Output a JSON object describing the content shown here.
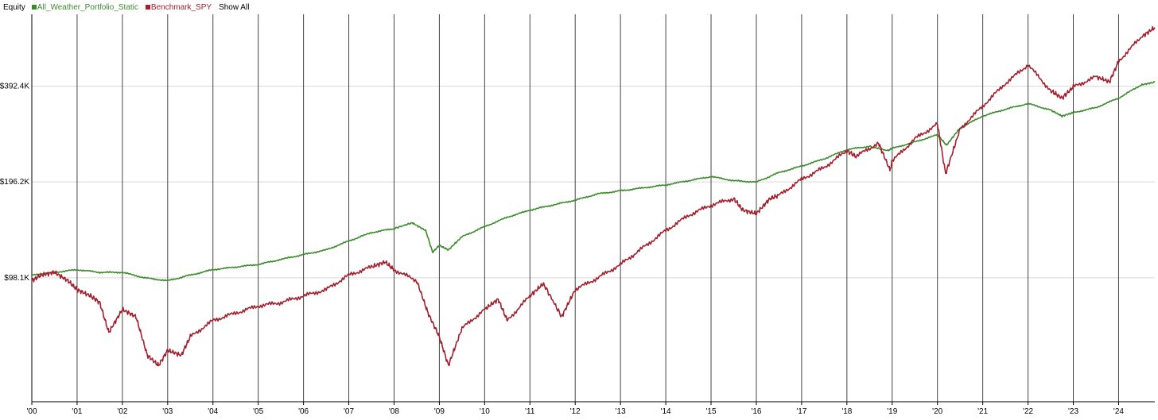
{
  "legend": {
    "title": "Equity",
    "show_all": "Show All"
  },
  "chart_data": {
    "type": "line",
    "title": "",
    "xlabel": "",
    "ylabel": "",
    "xlim": [
      2000.0,
      2024.8
    ],
    "ylim": [
      40000,
      660000
    ],
    "y_scale": "log",
    "grid": "vertical lines at each year, horizontal lines at y ticks",
    "legend_position": "top-left",
    "x_ticks": [
      {
        "value": 2000,
        "label": "'00"
      },
      {
        "value": 2001,
        "label": "'01"
      },
      {
        "value": 2002,
        "label": "'02"
      },
      {
        "value": 2003,
        "label": "'03"
      },
      {
        "value": 2004,
        "label": "'04"
      },
      {
        "value": 2005,
        "label": "'05"
      },
      {
        "value": 2006,
        "label": "'06"
      },
      {
        "value": 2007,
        "label": "'07"
      },
      {
        "value": 2008,
        "label": "'08"
      },
      {
        "value": 2009,
        "label": "'09"
      },
      {
        "value": 2010,
        "label": "'10"
      },
      {
        "value": 2011,
        "label": "'11"
      },
      {
        "value": 2012,
        "label": "'12"
      },
      {
        "value": 2013,
        "label": "'13"
      },
      {
        "value": 2014,
        "label": "'14"
      },
      {
        "value": 2015,
        "label": "'15"
      },
      {
        "value": 2016,
        "label": "'16"
      },
      {
        "value": 2017,
        "label": "'17"
      },
      {
        "value": 2018,
        "label": "'18"
      },
      {
        "value": 2019,
        "label": "'19"
      },
      {
        "value": 2020,
        "label": "'20"
      },
      {
        "value": 2021,
        "label": "'21"
      },
      {
        "value": 2022,
        "label": "'22"
      },
      {
        "value": 2023,
        "label": "'23"
      },
      {
        "value": 2024,
        "label": "'24"
      }
    ],
    "y_ticks": [
      {
        "value": 98100,
        "label": "$98.1K"
      },
      {
        "value": 196200,
        "label": "$196.2K"
      },
      {
        "value": 392400,
        "label": "$392.4K"
      }
    ],
    "series": [
      {
        "name": "All_Weather_Portfolio_Static",
        "color": "#3c8a2e",
        "points": [
          [
            2000.0,
            100000
          ],
          [
            2000.5,
            102000
          ],
          [
            2001.0,
            104000
          ],
          [
            2001.5,
            102000
          ],
          [
            2002.0,
            102000
          ],
          [
            2002.5,
            98000
          ],
          [
            2003.0,
            96000
          ],
          [
            2003.5,
            100000
          ],
          [
            2004.0,
            104000
          ],
          [
            2004.5,
            106000
          ],
          [
            2005.0,
            108000
          ],
          [
            2005.5,
            112000
          ],
          [
            2006.0,
            116000
          ],
          [
            2006.5,
            120000
          ],
          [
            2007.0,
            128000
          ],
          [
            2007.5,
            136000
          ],
          [
            2008.0,
            140000
          ],
          [
            2008.4,
            146000
          ],
          [
            2008.7,
            138000
          ],
          [
            2008.85,
            118000
          ],
          [
            2009.0,
            124000
          ],
          [
            2009.2,
            120000
          ],
          [
            2009.5,
            132000
          ],
          [
            2010.0,
            142000
          ],
          [
            2010.5,
            152000
          ],
          [
            2011.0,
            160000
          ],
          [
            2011.5,
            166000
          ],
          [
            2012.0,
            172000
          ],
          [
            2012.5,
            180000
          ],
          [
            2013.0,
            184000
          ],
          [
            2013.5,
            188000
          ],
          [
            2014.0,
            192000
          ],
          [
            2014.5,
            198000
          ],
          [
            2015.0,
            204000
          ],
          [
            2015.5,
            198000
          ],
          [
            2016.0,
            196000
          ],
          [
            2016.5,
            210000
          ],
          [
            2017.0,
            220000
          ],
          [
            2017.5,
            232000
          ],
          [
            2018.0,
            248000
          ],
          [
            2018.5,
            254000
          ],
          [
            2018.9,
            246000
          ],
          [
            2019.0,
            250000
          ],
          [
            2019.5,
            262000
          ],
          [
            2020.0,
            276000
          ],
          [
            2020.2,
            256000
          ],
          [
            2020.5,
            290000
          ],
          [
            2021.0,
            316000
          ],
          [
            2021.5,
            332000
          ],
          [
            2022.0,
            346000
          ],
          [
            2022.5,
            330000
          ],
          [
            2022.75,
            316000
          ],
          [
            2023.0,
            324000
          ],
          [
            2023.5,
            336000
          ],
          [
            2024.0,
            360000
          ],
          [
            2024.5,
            396000
          ],
          [
            2024.8,
            404000
          ]
        ]
      },
      {
        "name": "Benchmark_SPY",
        "color": "#a2202e",
        "points": [
          [
            2000.0,
            96000
          ],
          [
            2000.2,
            100000
          ],
          [
            2000.5,
            102000
          ],
          [
            2000.8,
            96000
          ],
          [
            2001.0,
            90000
          ],
          [
            2001.3,
            86000
          ],
          [
            2001.5,
            82000
          ],
          [
            2001.7,
            66000
          ],
          [
            2002.0,
            78000
          ],
          [
            2002.3,
            74000
          ],
          [
            2002.55,
            56000
          ],
          [
            2002.8,
            52000
          ],
          [
            2003.0,
            58000
          ],
          [
            2003.3,
            56000
          ],
          [
            2003.5,
            64000
          ],
          [
            2004.0,
            72000
          ],
          [
            2004.5,
            76000
          ],
          [
            2005.0,
            80000
          ],
          [
            2005.5,
            82000
          ],
          [
            2006.0,
            86000
          ],
          [
            2006.5,
            90000
          ],
          [
            2007.0,
            100000
          ],
          [
            2007.5,
            106000
          ],
          [
            2007.8,
            110000
          ],
          [
            2008.0,
            104000
          ],
          [
            2008.5,
            96000
          ],
          [
            2008.75,
            76000
          ],
          [
            2009.0,
            64000
          ],
          [
            2009.2,
            52000
          ],
          [
            2009.5,
            68000
          ],
          [
            2010.0,
            78000
          ],
          [
            2010.3,
            84000
          ],
          [
            2010.5,
            72000
          ],
          [
            2011.0,
            86000
          ],
          [
            2011.3,
            94000
          ],
          [
            2011.7,
            74000
          ],
          [
            2012.0,
            90000
          ],
          [
            2012.5,
            98000
          ],
          [
            2013.0,
            108000
          ],
          [
            2013.5,
            122000
          ],
          [
            2014.0,
            138000
          ],
          [
            2014.5,
            154000
          ],
          [
            2015.0,
            166000
          ],
          [
            2015.5,
            174000
          ],
          [
            2015.7,
            160000
          ],
          [
            2016.0,
            156000
          ],
          [
            2016.3,
            174000
          ],
          [
            2016.5,
            178000
          ],
          [
            2017.0,
            200000
          ],
          [
            2017.5,
            218000
          ],
          [
            2018.0,
            246000
          ],
          [
            2018.2,
            236000
          ],
          [
            2018.7,
            260000
          ],
          [
            2018.95,
            214000
          ],
          [
            2019.0,
            228000
          ],
          [
            2019.5,
            268000
          ],
          [
            2020.0,
            298000
          ],
          [
            2020.18,
            208000
          ],
          [
            2020.5,
            288000
          ],
          [
            2021.0,
            340000
          ],
          [
            2021.5,
            400000
          ],
          [
            2022.0,
            458000
          ],
          [
            2022.5,
            380000
          ],
          [
            2022.75,
            360000
          ],
          [
            2023.0,
            390000
          ],
          [
            2023.5,
            420000
          ],
          [
            2023.8,
            405000
          ],
          [
            2024.0,
            470000
          ],
          [
            2024.5,
            560000
          ],
          [
            2024.8,
            600000
          ]
        ]
      }
    ]
  }
}
